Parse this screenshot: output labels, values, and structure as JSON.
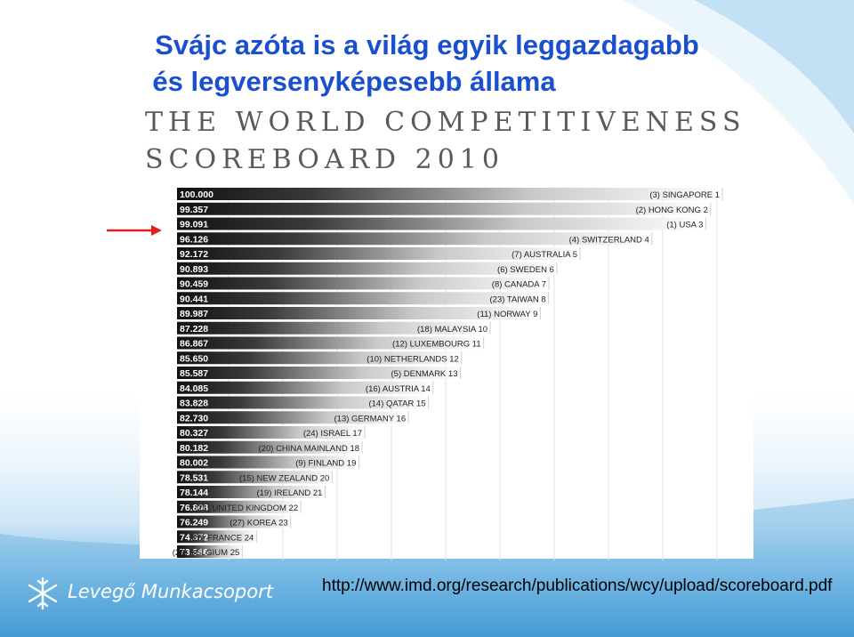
{
  "slide": {
    "title_line1": "Svájc azóta is a világ egyik leggazdagabb",
    "title_line2": "és legversenyképesebb állama",
    "url": "http://www.imd.org/research/publications/wcy/upload/scoreboard.pdf",
    "logo_text": "Levegő Munkacsoport",
    "logo_icon": "snowflake-icon",
    "arrow_color": "#e02020",
    "title_color": "#1a4fd0"
  },
  "scoreboard": {
    "title_line1": "THE WORLD COMPETITIVENESS",
    "title_line2": "SCOREBOARD 2010"
  },
  "chart_data": {
    "type": "bar",
    "orientation": "horizontal",
    "xlim": [
      0,
      100
    ],
    "values": [
      100.0,
      99.357,
      99.091,
      96.126,
      92.172,
      90.893,
      90.459,
      90.441,
      89.987,
      87.228,
      86.867,
      85.65,
      85.587,
      84.085,
      83.828,
      82.73,
      80.327,
      80.182,
      80.002,
      78.531,
      78.144,
      76.808,
      76.249,
      74.372,
      73.586
    ],
    "value_labels": [
      "100.000",
      "99.357",
      "99.091",
      "96.126",
      "92.172",
      "90.893",
      "90.459",
      "90.441",
      "89.987",
      "87.228",
      "86.867",
      "85.650",
      "85.587",
      "84.085",
      "83.828",
      "82.730",
      "80.327",
      "80.182",
      "80.002",
      "78.531",
      "78.144",
      "76.808",
      "76.249",
      "74.372",
      "73.586"
    ],
    "categories": [
      "(3) SINGAPORE 1",
      "(2) HONG KONG 2",
      "(1) USA 3",
      "(4) SWITZERLAND 4",
      "(7) AUSTRALIA 5",
      "(6) SWEDEN 6",
      "(8) CANADA 7",
      "(23) TAIWAN 8",
      "(11) NORWAY 9",
      "(18) MALAYSIA 10",
      "(12) LUXEMBOURG 11",
      "(10) NETHERLANDS 12",
      "(5) DENMARK 13",
      "(16) AUSTRIA 14",
      "(14) QATAR 15",
      "(13) GERMANY 16",
      "(24) ISRAEL 17",
      "(20) CHINA MAINLAND 18",
      "(9) FINLAND 19",
      "(15) NEW ZEALAND 20",
      "(19) IRELAND 21",
      "(21) UNITED KINGDOM 22",
      "(27) KOREA 23",
      "(28) FRANCE 24",
      "(22) BELGIUM 25"
    ],
    "highlighted_category": "(4) SWITZERLAND 4",
    "grid": true
  }
}
